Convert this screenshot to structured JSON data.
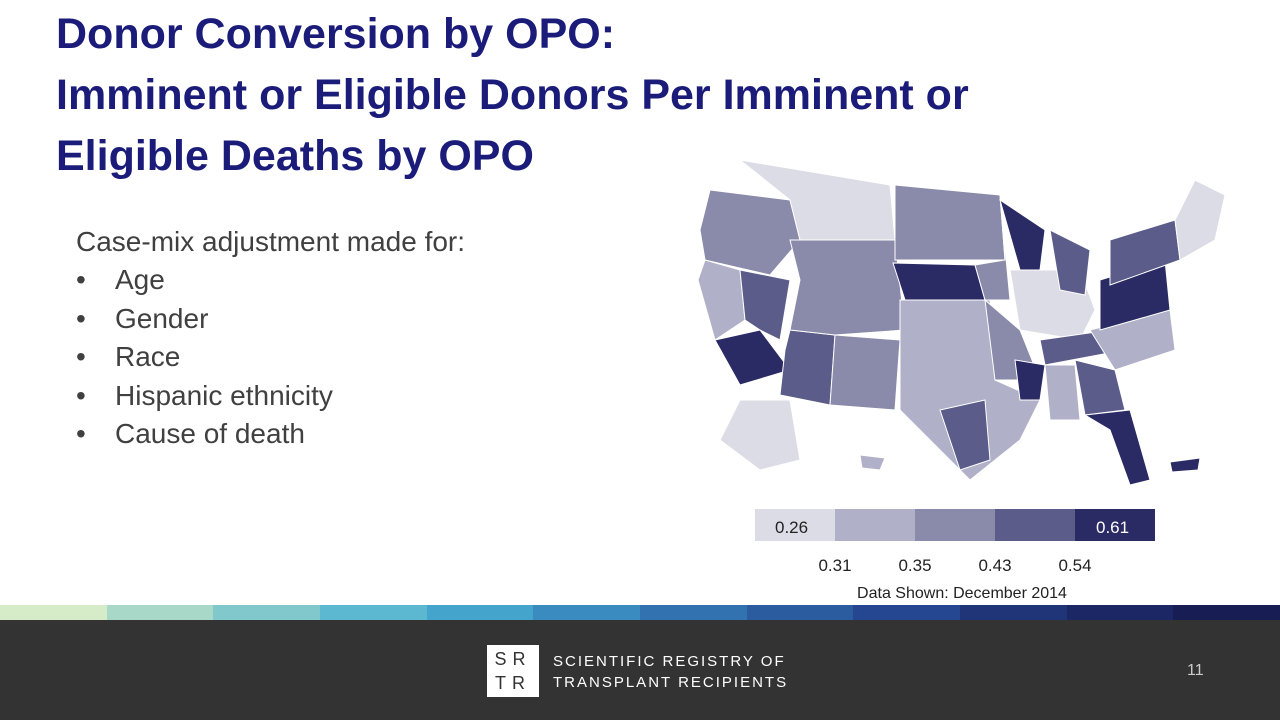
{
  "header": {
    "title": [
      "Donor Conversion by OPO:",
      "Imminent or Eligible Donors Per Imminent or",
      "Eligible Deaths by OPO"
    ]
  },
  "body": {
    "intro": "Case-mix adjustment made for:",
    "bullets": [
      "Age",
      "Gender",
      "Race",
      "Hispanic ethnicity",
      "Cause of death"
    ]
  },
  "legend": {
    "min": 0.26,
    "max": 0.61,
    "breaks": [
      0.31,
      0.35,
      0.43,
      0.54
    ],
    "note": "Data Shown: December 2014"
  },
  "footer": {
    "logo": [
      "SR",
      "TR"
    ],
    "org": [
      "SCIENTIFIC REGISTRY OF",
      "TRANSPLANT RECIPIENTS"
    ],
    "page": "11"
  }
}
